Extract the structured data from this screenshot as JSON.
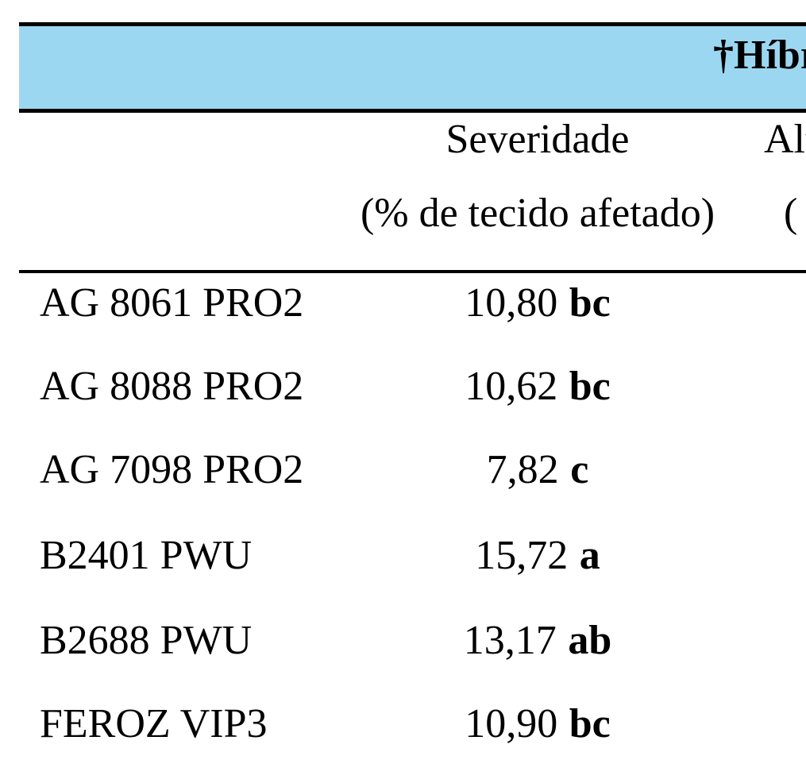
{
  "page": {
    "background_color": "#ffffff",
    "text_color": "#000000"
  },
  "table": {
    "band": {
      "fill_color": "#9CD7F1",
      "border_color": "#000000",
      "title_visible_fragment": "†Híbr"
    },
    "column_headers": {
      "severity_line1": "Severidade",
      "severity_line2": "(% de tecido afetado)",
      "next_column_line1_fragment": "Alt",
      "next_column_line2_fragment": "("
    },
    "rows": [
      {
        "hybrid": "AG 8061 PRO2",
        "severity_value": "10,80",
        "severity_group": "bc"
      },
      {
        "hybrid": "AG 8088 PRO2",
        "severity_value": "10,62",
        "severity_group": "bc"
      },
      {
        "hybrid": "AG 7098 PRO2",
        "severity_value": "7,82",
        "severity_group": "c"
      },
      {
        "hybrid": "B2401 PWU",
        "severity_value": "15,72",
        "severity_group": "a"
      },
      {
        "hybrid": "B2688 PWU",
        "severity_value": "13,17",
        "severity_group": "ab"
      },
      {
        "hybrid": "FEROZ VIP3",
        "severity_value": "10,90",
        "severity_group": "bc"
      }
    ]
  }
}
